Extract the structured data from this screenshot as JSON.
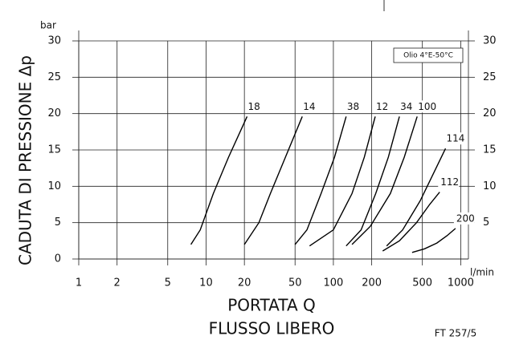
{
  "chart_data": {
    "type": "line",
    "y_unit": "bar",
    "x_unit": "l/min",
    "y_label": "CADUTA DI PRESSIONE Δp",
    "x_label": "PORTATA Q",
    "subtitle": "FLUSSO LIBERO",
    "annotation": "Olio 4°E-50°C",
    "code": "FT 257/5",
    "log_x": true,
    "grid": true,
    "xlim": [
      1,
      1150
    ],
    "ylim": [
      0,
      30
    ],
    "xticks": [
      1,
      2,
      5,
      10,
      20,
      50,
      100,
      200,
      500,
      1000
    ],
    "yticks": [
      0,
      5,
      10,
      15,
      20,
      25,
      30
    ],
    "y2lim": [
      0,
      30
    ],
    "y2ticks": [
      5,
      10,
      15,
      20,
      25,
      30
    ],
    "series": [
      {
        "name": "18",
        "color": "#000000",
        "x": [
          7.6,
          9,
          11.4,
          15,
          21
        ],
        "values": [
          2,
          4,
          9,
          14,
          19.6
        ]
      },
      {
        "name": "14",
        "color": "#000000",
        "x": [
          20,
          26,
          32,
          42,
          57
        ],
        "values": [
          2,
          5,
          9,
          14,
          19.6
        ]
      },
      {
        "name": "38",
        "color": "#000000",
        "x": [
          50,
          62,
          80,
          102,
          126
        ],
        "values": [
          2,
          4,
          9,
          14,
          19.6
        ]
      },
      {
        "name": "12",
        "color": "#000000",
        "x": [
          65,
          100,
          140,
          175,
          213
        ],
        "values": [
          1.8,
          4,
          9,
          14,
          19.6
        ]
      },
      {
        "name": "34",
        "color": "#000000",
        "x": [
          126,
          165,
          215,
          270,
          330
        ],
        "values": [
          1.8,
          4,
          9,
          14,
          19.6
        ]
      },
      {
        "name": "100",
        "color": "#000000",
        "x": [
          140,
          195,
          280,
          360,
          455
        ],
        "values": [
          2,
          4.5,
          9,
          14,
          19.6
        ]
      },
      {
        "name": "114",
        "color": "#000000",
        "x": [
          262,
          350,
          480,
          620,
          760
        ],
        "values": [
          1.8,
          4,
          8,
          12,
          15.2
        ]
      },
      {
        "name": "112",
        "color": "#000000",
        "x": [
          244,
          330,
          450,
          570,
          684
        ],
        "values": [
          1.1,
          2.5,
          5,
          7.5,
          9.2
        ]
      },
      {
        "name": "200",
        "color": "#000000",
        "x": [
          415,
          520,
          650,
          780,
          910
        ],
        "values": [
          0.9,
          1.4,
          2.2,
          3.2,
          4.2
        ]
      }
    ]
  }
}
